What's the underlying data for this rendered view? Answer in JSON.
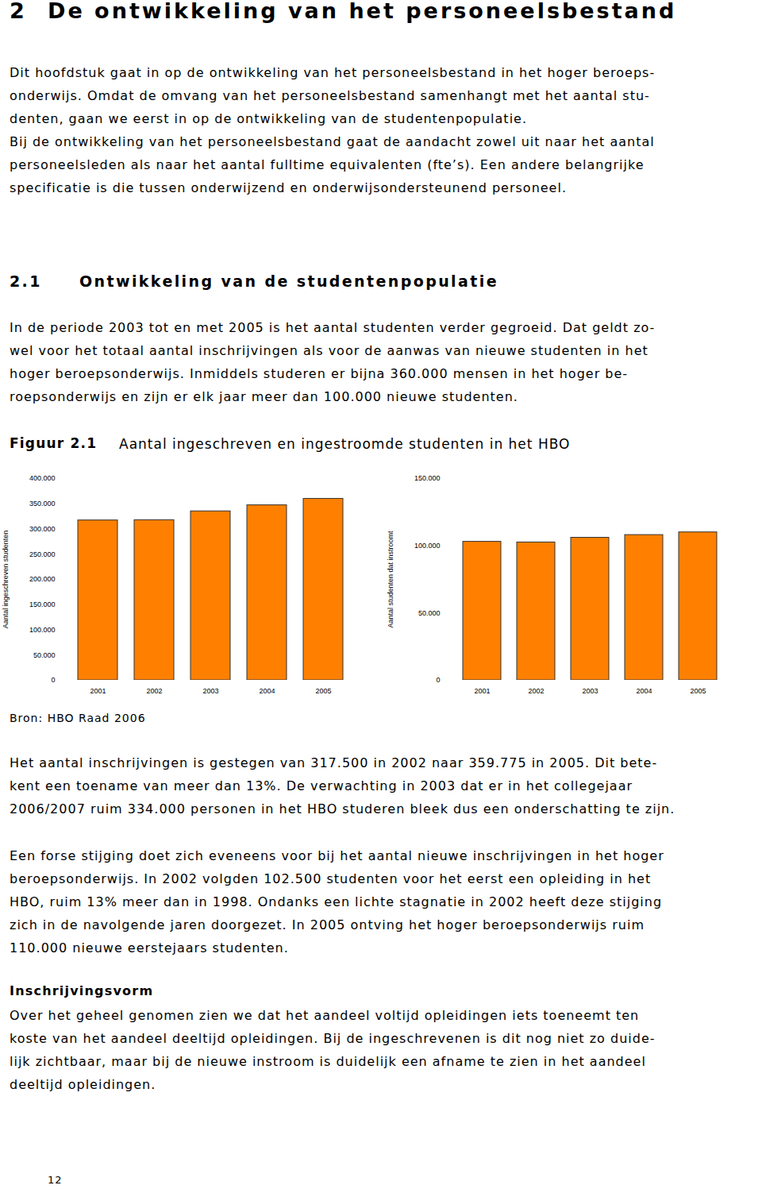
{
  "page": {
    "heading": {
      "number": "2",
      "text": "De ontwikkeling van het personeelsbestand"
    },
    "intro": [
      "Dit hoofdstuk gaat in op de ontwikkeling van het personeelsbestand in het hoger beroeps-",
      "onderwijs. Omdat de omvang van het personeelsbestand samenhangt met het aantal stu-",
      "denten, gaan we eerst in op de ontwikkeling van de studentenpopulatie.",
      "Bij de ontwikkeling van het personeelsbestand gaat de aandacht zowel uit naar het aantal",
      "personeelsleden als naar het aantal fulltime equivalenten (fte’s). Een andere belangrijke",
      "specificatie is die tussen onderwijzend en onderwijsondersteunend personeel."
    ],
    "section": {
      "number": "2.1",
      "text": "Ontwikkeling van de studentenpopulatie"
    },
    "section_text": [
      "In de periode 2003 tot en met 2005 is het aantal studenten verder gegroeid. Dat geldt zo-",
      "wel voor het totaal aantal inschrijvingen als voor de aanwas van nieuwe studenten in het",
      "hoger beroepsonderwijs. Inmiddels studeren er bijna 360.000 mensen in het hoger be-",
      "roepsonderwijs en zijn er elk jaar meer dan 100.000 nieuwe studenten."
    ],
    "figure": {
      "label": "Figuur 2.1",
      "caption": "Aantal ingeschreven en ingestroomde studenten in het HBO",
      "source": "Bron: HBO Raad 2006"
    },
    "after_figure": [
      [
        "Het aantal inschrijvingen is gestegen van 317.500 in 2002 naar 359.775 in 2005. Dit bete-",
        "kent een toename van meer dan 13%. De verwachting in 2003 dat er in het collegejaar",
        "2006/2007 ruim 334.000 personen in het HBO studeren bleek dus een onderschatting te zijn."
      ],
      [
        "Een forse stijging doet zich eveneens voor bij het aantal nieuwe inschrijvingen in het hoger",
        "beroepsonderwijs. In 2002 volgden 102.500 studenten voor het eerst een opleiding in het",
        "HBO, ruim 13% meer dan in 1998. Ondanks een lichte stagnatie in 2002 heeft deze stijging",
        "zich in de navolgende jaren doorgezet. In 2005 ontving het hoger beroepsonderwijs ruim",
        "110.000 nieuwe eerstejaars studenten."
      ]
    ],
    "subsection": {
      "title": "Inschrijvingsvorm",
      "text": [
        "Over het geheel genomen zien we dat het aandeel voltijd opleidingen iets toeneemt ten",
        "koste van het aandeel deeltijd opleidingen. Bij de ingeschrevenen is dit nog niet zo duide-",
        "lijk zichtbaar, maar bij de nieuwe instroom is duidelijk een afname te zien in het aandeel",
        "deeltijd opleidingen."
      ]
    },
    "page_number": "12"
  },
  "chart_data": [
    {
      "type": "bar",
      "categories": [
        "2001",
        "2002",
        "2003",
        "2004",
        "2005"
      ],
      "values": [
        317000,
        317500,
        335000,
        347000,
        359775
      ],
      "color": "#ff8000",
      "ylabel": "Aantal ingeschreven studenten",
      "ylim": [
        0,
        400000
      ],
      "yticks": [
        0,
        {
          "value": 50000,
          "label": "50.000"
        },
        {
          "value": 100000,
          "label": "100.000"
        },
        {
          "value": 150000,
          "label": "150.000"
        },
        {
          "value": 200000,
          "label": "200.000"
        },
        {
          "value": 250000,
          "label": "250.000"
        },
        {
          "value": 300000,
          "label": "300.000"
        },
        {
          "value": 350000,
          "label": "350.000"
        },
        {
          "value": 400000,
          "label": "400.000"
        }
      ],
      "grid": false
    },
    {
      "type": "bar",
      "categories": [
        "2001",
        "2002",
        "2003",
        "2004",
        "2005"
      ],
      "values": [
        103000,
        102500,
        106000,
        108000,
        110000
      ],
      "color": "#ff8000",
      "ylabel": "Aantal studenten dat instroomt",
      "ylim": [
        0,
        150000
      ],
      "yticks": [
        0,
        {
          "value": 50000,
          "label": "50.000"
        },
        {
          "value": 100000,
          "label": "100.000"
        },
        {
          "value": 150000,
          "label": "150.000"
        }
      ],
      "grid": false
    }
  ]
}
